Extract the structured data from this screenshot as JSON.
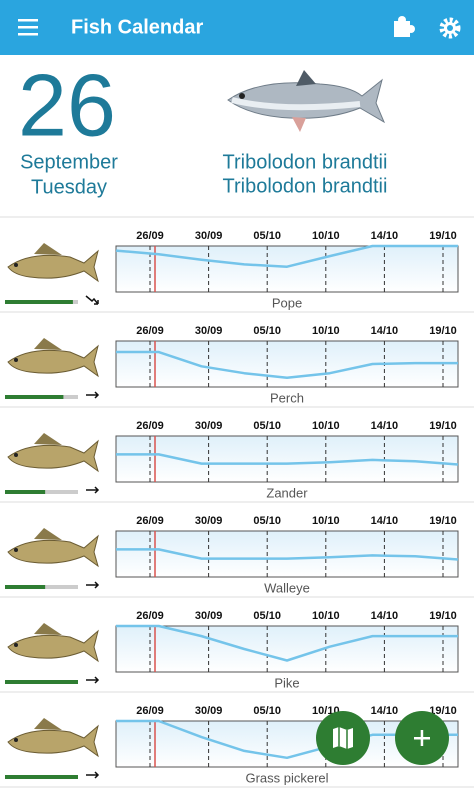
{
  "app_bar": {
    "title": "Fish Calendar"
  },
  "today": {
    "day": 26,
    "month": "September",
    "weekday": "Tuesday"
  },
  "featured_fish": {
    "name": "Tribolodon brandtii",
    "latin_name": "Tribolodon brandtii"
  },
  "calendar": {
    "date_ticks": [
      "26/09",
      "30/09",
      "05/10",
      "10/10",
      "14/10",
      "19/10"
    ],
    "activity_lim": [
      0,
      100
    ],
    "rating_lim": [
      0,
      100
    ]
  },
  "fish": [
    {
      "name": "Pope",
      "activity": [
        90,
        82,
        70,
        60,
        55,
        78,
        100,
        100,
        100
      ],
      "rating": 93,
      "trend": "down"
    },
    {
      "name": "Perch",
      "activity": [
        76,
        76,
        45,
        30,
        20,
        30,
        50,
        52,
        52
      ],
      "rating": 80,
      "trend": "flat"
    },
    {
      "name": "Zander",
      "activity": [
        60,
        60,
        40,
        40,
        40,
        43,
        48,
        45,
        38
      ],
      "rating": 55,
      "trend": "flat"
    },
    {
      "name": "Walleye",
      "activity": [
        60,
        60,
        40,
        40,
        40,
        43,
        47,
        45,
        38
      ],
      "rating": 55,
      "trend": "flat"
    },
    {
      "name": "Pike",
      "activity": [
        100,
        100,
        78,
        50,
        25,
        55,
        78,
        78,
        78
      ],
      "rating": 100,
      "trend": "flat"
    },
    {
      "name": "Grass pickerel",
      "activity": [
        100,
        100,
        65,
        35,
        20,
        45,
        70,
        70,
        70
      ],
      "rating": 100,
      "trend": "flat"
    }
  ]
}
